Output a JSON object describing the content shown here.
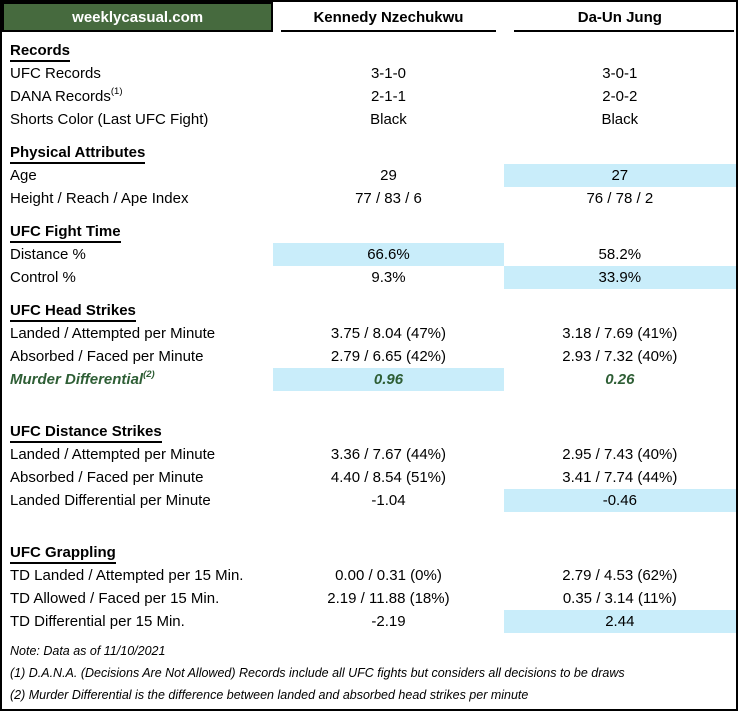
{
  "brand": "weeklycasual.com",
  "fighters": [
    "Kennedy Nzechukwu",
    "Da-Un Jung"
  ],
  "sections": [
    {
      "title": "Records",
      "rows": [
        {
          "label": "UFC Records",
          "values": [
            "3-1-0",
            "3-0-1"
          ],
          "highlight": [
            false,
            false
          ]
        },
        {
          "label": "DANA Records",
          "sup": "(1)",
          "values": [
            "2-1-1",
            "2-0-2"
          ],
          "highlight": [
            false,
            false
          ]
        },
        {
          "label": "Shorts Color (Last UFC Fight)",
          "values": [
            "Black",
            "Black"
          ],
          "highlight": [
            false,
            false
          ]
        }
      ]
    },
    {
      "title": "Physical Attributes",
      "rows": [
        {
          "label": "Age",
          "values": [
            "29",
            "27"
          ],
          "highlight": [
            false,
            true
          ]
        },
        {
          "label": "Height / Reach / Ape Index",
          "values": [
            "77 / 83 / 6",
            "76 / 78 / 2"
          ],
          "highlight": [
            false,
            false
          ]
        }
      ]
    },
    {
      "title": "UFC Fight Time",
      "rows": [
        {
          "label": "Distance %",
          "values": [
            "66.6%",
            "58.2%"
          ],
          "highlight": [
            true,
            false
          ]
        },
        {
          "label": "Control %",
          "values": [
            "9.3%",
            "33.9%"
          ],
          "highlight": [
            false,
            true
          ]
        }
      ]
    },
    {
      "title": "UFC Head Strikes",
      "rows": [
        {
          "label": "Landed / Attempted per Minute",
          "values": [
            "3.75 / 8.04 (47%)",
            "3.18 / 7.69 (41%)"
          ],
          "highlight": [
            false,
            false
          ]
        },
        {
          "label": "Absorbed / Faced per Minute",
          "values": [
            "2.79 / 6.65 (42%)",
            "2.93 / 7.32 (40%)"
          ],
          "highlight": [
            false,
            false
          ]
        },
        {
          "label": "Murder Differential",
          "sup": "(2)",
          "values": [
            "0.96",
            "0.26"
          ],
          "highlight": [
            true,
            false
          ],
          "green": true
        }
      ]
    },
    {
      "title": "UFC Distance Strikes",
      "big_gap": true,
      "rows": [
        {
          "label": "Landed / Attempted per Minute",
          "values": [
            "3.36 / 7.67 (44%)",
            "2.95 / 7.43 (40%)"
          ],
          "highlight": [
            false,
            false
          ]
        },
        {
          "label": "Absorbed / Faced per Minute",
          "values": [
            "4.40 / 8.54 (51%)",
            "3.41 / 7.74 (44%)"
          ],
          "highlight": [
            false,
            false
          ]
        },
        {
          "label": "Landed Differential per Minute",
          "values": [
            "-1.04",
            "-0.46"
          ],
          "highlight": [
            false,
            true
          ]
        }
      ]
    },
    {
      "title": "UFC Grappling",
      "big_gap": true,
      "rows": [
        {
          "label": "TD Landed / Attempted per 15 Min.",
          "values": [
            "0.00 / 0.31 (0%)",
            "2.79 / 4.53 (62%)"
          ],
          "highlight": [
            false,
            false
          ]
        },
        {
          "label": "TD Allowed / Faced per 15 Min.",
          "values": [
            "2.19 / 11.88 (18%)",
            "0.35 / 3.14 (11%)"
          ],
          "highlight": [
            false,
            false
          ]
        },
        {
          "label": "TD Differential per 15 Min.",
          "values": [
            "-2.19",
            "2.44"
          ],
          "highlight": [
            false,
            true
          ]
        }
      ]
    }
  ],
  "notes": [
    "Note: Data as of 11/10/2021",
    "(1) D.A.N.A. (Decisions Are Not Allowed) Records include all UFC fights but considers all decisions to be draws",
    "(2) Murder Differential is the difference between landed and absorbed head strikes per minute"
  ],
  "colors": {
    "brand_green": "#466a3e",
    "highlight_blue": "#c9edfa",
    "accent_green": "#2e5e35",
    "border_black": "#000000"
  }
}
